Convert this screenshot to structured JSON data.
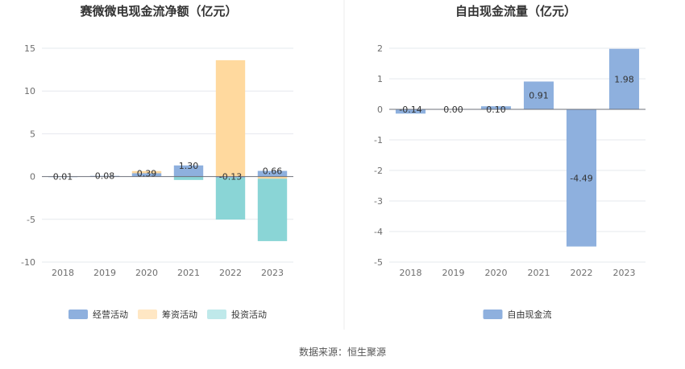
{
  "source_label": "数据来源：恒生聚源",
  "colors": {
    "operating": "#8eb0de",
    "financing": "#ffd99e",
    "investing": "#8ad5d6",
    "fcf": "#8eb0de",
    "legend_financing": "#ffe7c4",
    "legend_investing": "#bfe9ea"
  },
  "chart_data": [
    {
      "type": "bar",
      "stacked": true,
      "title": "赛微微电现金流净额（亿元）",
      "categories": [
        "2018",
        "2019",
        "2020",
        "2021",
        "2022",
        "2023"
      ],
      "ylim": [
        -10,
        15
      ],
      "yticks": [
        15,
        10,
        5,
        0,
        -5,
        -10
      ],
      "grid": true,
      "legend_position": "bottom",
      "series": [
        {
          "name": "经营活动",
          "values": [
            0.01,
            0.08,
            0.39,
            1.3,
            -0.13,
            0.66
          ]
        },
        {
          "name": "筹资活动",
          "values": [
            0.0,
            0.0,
            0.25,
            0.0,
            13.6,
            -0.25
          ]
        },
        {
          "name": "投资活动",
          "values": [
            0.0,
            0.0,
            0.0,
            -0.4,
            -4.9,
            -7.3
          ]
        }
      ],
      "data_labels": [
        "0.01",
        "0.08",
        "0.39",
        "1.30",
        "-0.13",
        "0.66"
      ]
    },
    {
      "type": "bar",
      "title": "自由现金流量（亿元）",
      "categories": [
        "2018",
        "2019",
        "2020",
        "2021",
        "2022",
        "2023"
      ],
      "ylim": [
        -5,
        2
      ],
      "yticks": [
        2,
        1,
        0,
        -1,
        -2,
        -3,
        -4,
        -5
      ],
      "grid": true,
      "legend_position": "bottom",
      "series": [
        {
          "name": "自由现金流",
          "values": [
            -0.14,
            0.0,
            0.1,
            0.91,
            -4.49,
            1.98
          ]
        }
      ],
      "data_labels": [
        "-0.14",
        "0.00",
        "0.10",
        "0.91",
        "-4.49",
        "1.98"
      ]
    }
  ]
}
